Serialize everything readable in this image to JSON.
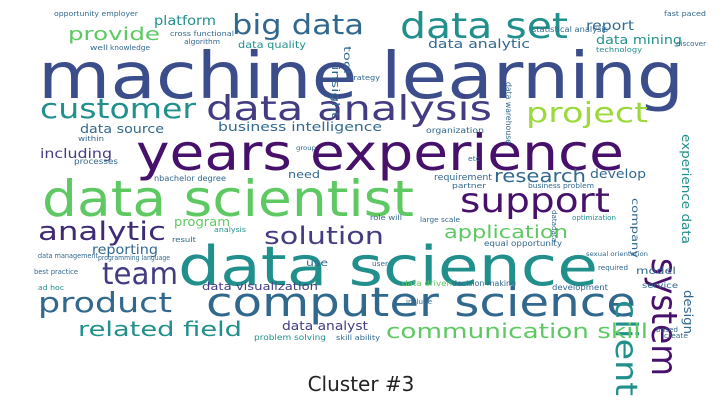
{
  "caption": "Cluster #3",
  "colors": {
    "background": "#ffffff",
    "navy": "#3b4d8b",
    "indigo": "#433c83",
    "purple": "#46106b",
    "teal": "#21908c",
    "blue": "#31688e",
    "green": "#5ec962",
    "lime": "#9bd93c",
    "dark": "#3f2a76"
  },
  "words": [
    {
      "text": "machine learning",
      "weight": 100
    },
    {
      "text": "years experience",
      "weight": 80
    },
    {
      "text": "data scientist",
      "weight": 78
    },
    {
      "text": "data science",
      "weight": 82
    },
    {
      "text": "computer science",
      "weight": 68
    },
    {
      "text": "data analysis",
      "weight": 62
    },
    {
      "text": "data set",
      "weight": 60
    },
    {
      "text": "big data",
      "weight": 52
    },
    {
      "text": "customer",
      "weight": 50
    },
    {
      "text": "project",
      "weight": 50
    },
    {
      "text": "support",
      "weight": 52
    },
    {
      "text": "system",
      "weight": 58
    },
    {
      "text": "client",
      "weight": 48
    },
    {
      "text": "analytic",
      "weight": 46
    },
    {
      "text": "solution",
      "weight": 44
    },
    {
      "text": "team",
      "weight": 50
    },
    {
      "text": "product",
      "weight": 46
    },
    {
      "text": "related field",
      "weight": 38
    },
    {
      "text": "communication skill",
      "weight": 36
    },
    {
      "text": "application",
      "weight": 34
    },
    {
      "text": "research",
      "weight": 30
    },
    {
      "text": "provide",
      "weight": 30
    },
    {
      "text": "business intelligence",
      "weight": 24
    },
    {
      "text": "data analytic",
      "weight": 22
    },
    {
      "text": "data mining",
      "weight": 22
    },
    {
      "text": "data source",
      "weight": 22
    },
    {
      "text": "including",
      "weight": 22
    },
    {
      "text": "reporting",
      "weight": 22
    },
    {
      "text": "experience data",
      "weight": 22
    },
    {
      "text": "platform",
      "weight": 20
    },
    {
      "text": "report",
      "weight": 20
    },
    {
      "text": "develop",
      "weight": 20
    },
    {
      "text": "program",
      "weight": 20
    },
    {
      "text": "data visualization",
      "weight": 18
    },
    {
      "text": "data analyst",
      "weight": 20
    },
    {
      "text": "statistical analysis",
      "weight": 14
    },
    {
      "text": "insight",
      "weight": 16
    },
    {
      "text": "need",
      "weight": 18
    },
    {
      "text": "company",
      "weight": 16
    },
    {
      "text": "design",
      "weight": 18
    },
    {
      "text": "model",
      "weight": 18
    },
    {
      "text": "data quality",
      "weight": 16
    },
    {
      "text": "tool",
      "weight": 14
    },
    {
      "text": "use",
      "weight": 14
    },
    {
      "text": "organization",
      "weight": 14
    },
    {
      "text": "requirement",
      "weight": 14
    },
    {
      "text": "equal opportunity",
      "weight": 12
    },
    {
      "text": "development",
      "weight": 12
    },
    {
      "text": "service",
      "weight": 12
    },
    {
      "text": "data driven",
      "weight": 12
    },
    {
      "text": "decision making",
      "weight": 12
    },
    {
      "text": "problem solving",
      "weight": 12
    },
    {
      "text": "nbachelor degree",
      "weight": 12
    },
    {
      "text": "opportunity employer",
      "weight": 10
    },
    {
      "text": "fast paced",
      "weight": 10
    },
    {
      "text": "cross functional",
      "weight": 10
    },
    {
      "text": "algorithm",
      "weight": 10
    },
    {
      "text": "well",
      "weight": 10
    },
    {
      "text": "knowledge",
      "weight": 10
    },
    {
      "text": "technology",
      "weight": 10
    },
    {
      "text": "strategy",
      "weight": 10
    },
    {
      "text": "data warehouse",
      "weight": 10
    },
    {
      "text": "processes",
      "weight": 10
    },
    {
      "text": "group",
      "weight": 9
    },
    {
      "text": "partner",
      "weight": 10
    },
    {
      "text": "business problem",
      "weight": 9
    },
    {
      "text": "large scale",
      "weight": 10
    },
    {
      "text": "data management",
      "weight": 9
    },
    {
      "text": "programming language",
      "weight": 9
    },
    {
      "text": "best practice",
      "weight": 9
    },
    {
      "text": "ad hoc",
      "weight": 9
    },
    {
      "text": "required",
      "weight": 9
    },
    {
      "text": "based",
      "weight": 9
    },
    {
      "text": "create",
      "weight": 9
    },
    {
      "text": "result",
      "weight": 9
    },
    {
      "text": "etc",
      "weight": 9
    },
    {
      "text": "skill ability",
      "weight": 9
    },
    {
      "text": "include",
      "weight": 9
    },
    {
      "text": "user",
      "weight": 9
    },
    {
      "text": "within",
      "weight": 9
    },
    {
      "text": "role will",
      "weight": 9
    },
    {
      "text": "analysis",
      "weight": 9
    },
    {
      "text": "discover",
      "weight": 9
    },
    {
      "text": "datadata",
      "weight": 8
    },
    {
      "text": "optimization",
      "weight": 8
    },
    {
      "text": "sexual orientation",
      "weight": 8
    }
  ]
}
